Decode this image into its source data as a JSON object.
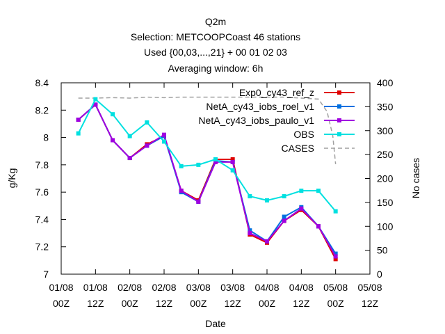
{
  "chart_data": {
    "type": "line",
    "title_lines": [
      "Q2m",
      "Selection: METCOOPCoast     46 stations",
      "Used {00,03,...,21} + 00 01 02 03",
      "Averaging window:  6h"
    ],
    "xlabel": "Date",
    "ylabel": "g/Kg",
    "y2label": "No cases",
    "ylim": [
      7.0,
      8.4
    ],
    "y2lim": [
      0,
      400
    ],
    "xlim": [
      0,
      108
    ],
    "yticks": [
      "7",
      "7.2",
      "7.4",
      "7.6",
      "7.8",
      "8",
      "8.2",
      "8.4"
    ],
    "y2ticks": [
      "0",
      "50",
      "100",
      "150",
      "200",
      "250",
      "300",
      "350",
      "400"
    ],
    "xticks": [
      {
        "top": "01/08",
        "bottom": "00Z"
      },
      {
        "top": "01/08",
        "bottom": "12Z"
      },
      {
        "top": "02/08",
        "bottom": "00Z"
      },
      {
        "top": "02/08",
        "bottom": "12Z"
      },
      {
        "top": "03/08",
        "bottom": "00Z"
      },
      {
        "top": "03/08",
        "bottom": "12Z"
      },
      {
        "top": "04/08",
        "bottom": "00Z"
      },
      {
        "top": "04/08",
        "bottom": "12Z"
      },
      {
        "top": "05/08",
        "bottom": "00Z"
      },
      {
        "top": "05/08",
        "bottom": "12Z"
      }
    ],
    "x_hours": [
      9,
      12,
      18,
      24,
      30,
      36,
      39,
      45,
      48,
      54,
      60,
      66,
      69,
      75,
      81,
      87,
      93,
      99
    ],
    "series": [
      {
        "name": "Exp0_cy43_ref_z",
        "color": "#e00000",
        "values": [
          8.13,
          8.24,
          7.98,
          7.85,
          7.95,
          8.01,
          7.61,
          7.54,
          7.84,
          7.84,
          7.29,
          7.23,
          7.39,
          7.47,
          7.35,
          7.11
        ]
      },
      {
        "name": "NetA_cy43_iobs_roel_v1",
        "color": "#0070e0",
        "values": [
          8.13,
          8.24,
          7.98,
          7.85,
          7.94,
          8.01,
          7.6,
          7.53,
          7.83,
          7.82,
          7.32,
          7.24,
          7.42,
          7.49,
          7.35,
          7.15
        ]
      },
      {
        "name": "NetA_cy43_iobs_paulo_v1",
        "color": "#a000e0",
        "values": [
          8.13,
          8.24,
          7.98,
          7.85,
          7.94,
          8.02,
          7.61,
          7.53,
          7.82,
          7.82,
          7.3,
          7.24,
          7.39,
          7.48,
          7.35,
          7.13
        ]
      },
      {
        "name": "OBS",
        "color": "#00e0e0",
        "values": [
          8.03,
          8.28,
          8.17,
          8.01,
          8.11,
          7.97,
          7.79,
          7.8,
          7.84,
          7.76,
          7.57,
          7.54,
          7.57,
          7.61,
          7.61,
          7.46
        ]
      }
    ],
    "series_x_hours": [
      6,
      12,
      18,
      24,
      30,
      36,
      42,
      48,
      54,
      60,
      66,
      72,
      78,
      84,
      90,
      96
    ],
    "cases": {
      "name": "CASES",
      "color": "#a0a0a0",
      "x_hours": [
        6,
        12,
        18,
        24,
        30,
        36,
        42,
        48,
        54,
        60,
        66,
        72,
        78,
        84,
        90,
        93,
        95,
        96
      ],
      "values": [
        368,
        368,
        369,
        368,
        370,
        369,
        370,
        370,
        370,
        370,
        370,
        370,
        370,
        368,
        366,
        340,
        290,
        230
      ]
    },
    "legend_position": "top-right",
    "grid": false
  }
}
